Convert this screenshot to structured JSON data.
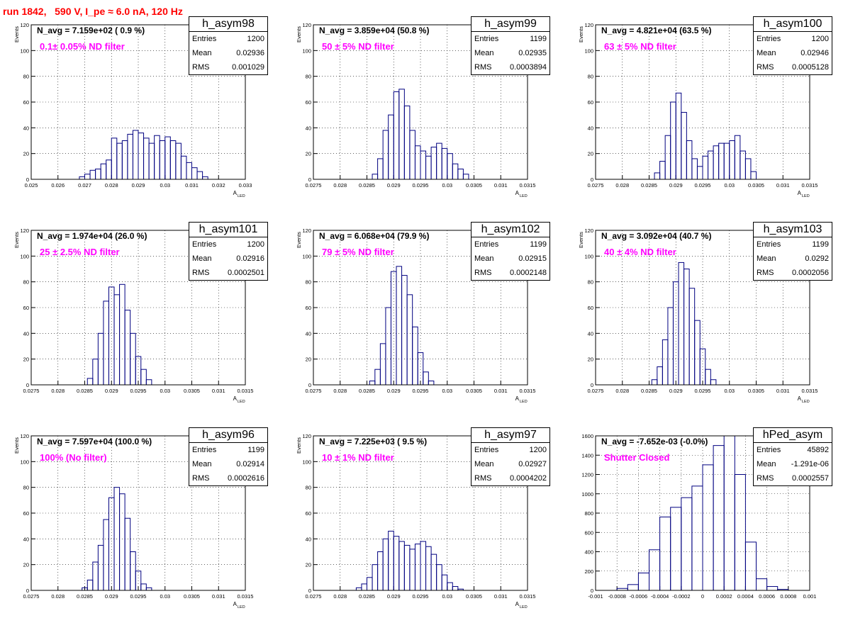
{
  "run_title": "run 1842,   590 V, I_pe ≈ 6.0 nA, 120 Hz",
  "colors": {
    "run_title": "#ff0000",
    "label": "#ff00ff",
    "hist": "#000080",
    "grid": "#000000"
  },
  "chart_data": [
    {
      "type": "histogram",
      "name": "h_asym98",
      "title": "N_avg = 7.159e+02 ( 0.9 %)",
      "label": "0.1± 0.05% ND filter",
      "ylabel": "Events",
      "xlabel": "A",
      "xlabel_sub": "LED",
      "xlim": [
        0.025,
        0.033
      ],
      "ylim": [
        0,
        120
      ],
      "xticks": [
        0.025,
        0.026,
        0.027,
        0.028,
        0.029,
        0.03,
        0.031,
        0.032,
        0.033
      ],
      "xticklabels": [
        "0.025",
        "0.026",
        "0.027",
        "0.028",
        "0.029",
        "0.03",
        "0.031",
        "0.032",
        "0.033"
      ],
      "yticks": [
        0,
        20,
        40,
        60,
        80,
        100,
        120
      ],
      "yticklabels": [
        "0",
        "20",
        "40",
        "60",
        "80",
        "100",
        "120"
      ],
      "bins": [
        0.0268,
        0.027,
        0.0272,
        0.0274,
        0.0276,
        0.0278,
        0.028,
        0.0282,
        0.0284,
        0.0286,
        0.0288,
        0.029,
        0.0292,
        0.0294,
        0.0296,
        0.0298,
        0.03,
        0.0302,
        0.0304,
        0.0306,
        0.0308,
        0.031,
        0.0312,
        0.0314,
        0.0316
      ],
      "counts": [
        2,
        4,
        7,
        8,
        12,
        15,
        32,
        28,
        30,
        35,
        38,
        36,
        32,
        28,
        34,
        30,
        33,
        30,
        28,
        18,
        13,
        9,
        6,
        2
      ],
      "stats": {
        "entries": "1200",
        "mean": "0.02936",
        "rms": "0.001029"
      }
    },
    {
      "type": "histogram",
      "name": "h_asym99",
      "title": "N_avg = 3.859e+04 (50.8 %)",
      "label": "50 ± 5% ND filter",
      "ylabel": "Events",
      "xlabel": "A",
      "xlabel_sub": "LED",
      "xlim": [
        0.0275,
        0.0315
      ],
      "ylim": [
        0,
        120
      ],
      "xticks": [
        0.0275,
        0.028,
        0.0285,
        0.029,
        0.0295,
        0.03,
        0.0305,
        0.031,
        0.0315
      ],
      "xticklabels": [
        "0.0275",
        "0.028",
        "0.0285",
        "0.029",
        "0.0295",
        "0.03",
        "0.0305",
        "0.031",
        "0.0315"
      ],
      "yticks": [
        0,
        20,
        40,
        60,
        80,
        100,
        120
      ],
      "yticklabels": [
        "0",
        "20",
        "40",
        "60",
        "80",
        "100",
        "120"
      ],
      "bins": [
        0.0286,
        0.0287,
        0.0288,
        0.0289,
        0.029,
        0.0291,
        0.0292,
        0.0293,
        0.0294,
        0.0295,
        0.0296,
        0.0297,
        0.0298,
        0.0299,
        0.03,
        0.0301,
        0.0302,
        0.0303,
        0.0304
      ],
      "counts": [
        4,
        16,
        38,
        50,
        68,
        70,
        57,
        38,
        26,
        22,
        18,
        25,
        28,
        24,
        20,
        12,
        8,
        4
      ],
      "stats": {
        "entries": "1199",
        "mean": "0.02935",
        "rms": "0.0003894"
      }
    },
    {
      "type": "histogram",
      "name": "h_asym100",
      "title": "N_avg = 4.821e+04 (63.5 %)",
      "label": "63 ± 5% ND filter",
      "ylabel": "Events",
      "xlabel": "A",
      "xlabel_sub": "LED",
      "xlim": [
        0.0275,
        0.0315
      ],
      "ylim": [
        0,
        120
      ],
      "xticks": [
        0.0275,
        0.028,
        0.0285,
        0.029,
        0.0295,
        0.03,
        0.0305,
        0.031,
        0.0315
      ],
      "xticklabels": [
        "0.0275",
        "0.028",
        "0.0285",
        "0.029",
        "0.0295",
        "0.03",
        "0.0305",
        "0.031",
        "0.0315"
      ],
      "yticks": [
        0,
        20,
        40,
        60,
        80,
        100,
        120
      ],
      "yticklabels": [
        "0",
        "20",
        "40",
        "60",
        "80",
        "100",
        "120"
      ],
      "bins": [
        0.0286,
        0.0287,
        0.0288,
        0.0289,
        0.029,
        0.0291,
        0.0292,
        0.0293,
        0.0294,
        0.0295,
        0.0296,
        0.0297,
        0.0298,
        0.0299,
        0.03,
        0.0301,
        0.0302,
        0.0303,
        0.0304,
        0.0305
      ],
      "counts": [
        5,
        14,
        34,
        60,
        67,
        52,
        30,
        16,
        10,
        18,
        22,
        26,
        28,
        28,
        30,
        34,
        22,
        16,
        6
      ],
      "stats": {
        "entries": "1200",
        "mean": "0.02946",
        "rms": "0.0005128"
      }
    },
    {
      "type": "histogram",
      "name": "h_asym101",
      "title": "N_avg = 1.974e+04 (26.0 %)",
      "label": "25 ± 2.5% ND filter",
      "ylabel": "Events",
      "xlabel": "A",
      "xlabel_sub": "LED",
      "xlim": [
        0.0275,
        0.0315
      ],
      "ylim": [
        0,
        120
      ],
      "xticks": [
        0.0275,
        0.028,
        0.0285,
        0.029,
        0.0295,
        0.03,
        0.0305,
        0.031,
        0.0315
      ],
      "xticklabels": [
        "0.0275",
        "0.028",
        "0.0285",
        "0.029",
        "0.0295",
        "0.03",
        "0.0305",
        "0.031",
        "0.0315"
      ],
      "yticks": [
        0,
        20,
        40,
        60,
        80,
        100,
        120
      ],
      "yticklabels": [
        "0",
        "20",
        "40",
        "60",
        "80",
        "100",
        "120"
      ],
      "bins": [
        0.02855,
        0.02865,
        0.02875,
        0.02885,
        0.02895,
        0.02905,
        0.02915,
        0.02925,
        0.02935,
        0.02945,
        0.02955,
        0.02965,
        0.02975
      ],
      "counts": [
        5,
        20,
        40,
        65,
        76,
        70,
        78,
        58,
        40,
        22,
        12,
        4
      ],
      "stats": {
        "entries": "1200",
        "mean": "0.02916",
        "rms": "0.0002501"
      }
    },
    {
      "type": "histogram",
      "name": "h_asym102",
      "title": "N_avg = 6.068e+04 (79.9 %)",
      "label": "79 ± 5% ND filter",
      "ylabel": "Events",
      "xlabel": "A",
      "xlabel_sub": "LED",
      "xlim": [
        0.0275,
        0.0315
      ],
      "ylim": [
        0,
        120
      ],
      "xticks": [
        0.0275,
        0.028,
        0.0285,
        0.029,
        0.0295,
        0.03,
        0.0305,
        0.031,
        0.0315
      ],
      "xticklabels": [
        "0.0275",
        "0.028",
        "0.0285",
        "0.029",
        "0.0295",
        "0.03",
        "0.0305",
        "0.031",
        "0.0315"
      ],
      "yticks": [
        0,
        20,
        40,
        60,
        80,
        100,
        120
      ],
      "yticklabels": [
        "0",
        "20",
        "40",
        "60",
        "80",
        "100",
        "120"
      ],
      "bins": [
        0.02855,
        0.02865,
        0.02875,
        0.02885,
        0.02895,
        0.02905,
        0.02915,
        0.02925,
        0.02935,
        0.02945,
        0.02955,
        0.02965,
        0.02975
      ],
      "counts": [
        3,
        12,
        32,
        60,
        88,
        92,
        85,
        70,
        45,
        25,
        10,
        3
      ],
      "stats": {
        "entries": "1199",
        "mean": "0.02915",
        "rms": "0.0002148"
      }
    },
    {
      "type": "histogram",
      "name": "h_asym103",
      "title": "N_avg = 3.092e+04 (40.7 %)",
      "label": "40 ± 4% ND filter",
      "ylabel": "Events",
      "xlabel": "A",
      "xlabel_sub": "LED",
      "xlim": [
        0.0275,
        0.0315
      ],
      "ylim": [
        0,
        120
      ],
      "xticks": [
        0.0275,
        0.028,
        0.0285,
        0.029,
        0.0295,
        0.03,
        0.0305,
        0.031,
        0.0315
      ],
      "xticklabels": [
        "0.0275",
        "0.028",
        "0.0285",
        "0.029",
        "0.0295",
        "0.03",
        "0.0305",
        "0.031",
        "0.0315"
      ],
      "yticks": [
        0,
        20,
        40,
        60,
        80,
        100,
        120
      ],
      "yticklabels": [
        "0",
        "20",
        "40",
        "60",
        "80",
        "100",
        "120"
      ],
      "bins": [
        0.02855,
        0.02865,
        0.02875,
        0.02885,
        0.02895,
        0.02905,
        0.02915,
        0.02925,
        0.02935,
        0.02945,
        0.02955,
        0.02965,
        0.02975
      ],
      "counts": [
        4,
        14,
        35,
        60,
        80,
        95,
        90,
        75,
        50,
        28,
        12,
        4
      ],
      "stats": {
        "entries": "1199",
        "mean": "0.0292",
        "rms": "0.0002056"
      }
    },
    {
      "type": "histogram",
      "name": "h_asym96",
      "title": "N_avg = 7.597e+04 (100.0 %)",
      "label": "100% (No filter)",
      "ylabel": "Events",
      "xlabel": "A",
      "xlabel_sub": "LED",
      "xlim": [
        0.0275,
        0.0315
      ],
      "ylim": [
        0,
        120
      ],
      "xticks": [
        0.0275,
        0.028,
        0.0285,
        0.029,
        0.0295,
        0.03,
        0.0305,
        0.031,
        0.0315
      ],
      "xticklabels": [
        "0.0275",
        "0.028",
        "0.0285",
        "0.029",
        "0.0295",
        "0.03",
        "0.0305",
        "0.031",
        "0.0315"
      ],
      "yticks": [
        0,
        20,
        40,
        60,
        80,
        100,
        120
      ],
      "yticklabels": [
        "0",
        "20",
        "40",
        "60",
        "80",
        "100",
        "120"
      ],
      "bins": [
        0.02845,
        0.02855,
        0.02865,
        0.02875,
        0.02885,
        0.02895,
        0.02905,
        0.02915,
        0.02925,
        0.02935,
        0.02945,
        0.02955,
        0.02965,
        0.02975
      ],
      "counts": [
        2,
        8,
        22,
        35,
        55,
        72,
        80,
        75,
        56,
        30,
        15,
        5,
        2
      ],
      "stats": {
        "entries": "1199",
        "mean": "0.02914",
        "rms": "0.0002616"
      }
    },
    {
      "type": "histogram",
      "name": "h_asym97",
      "title": "N_avg = 7.225e+03 ( 9.5 %)",
      "label": "10 ± 1% ND filter",
      "ylabel": "Events",
      "xlabel": "A",
      "xlabel_sub": "LED",
      "xlim": [
        0.0275,
        0.0315
      ],
      "ylim": [
        0,
        120
      ],
      "xticks": [
        0.0275,
        0.028,
        0.0285,
        0.029,
        0.0295,
        0.03,
        0.0305,
        0.031,
        0.0315
      ],
      "xticklabels": [
        "0.0275",
        "0.028",
        "0.0285",
        "0.029",
        "0.0295",
        "0.03",
        "0.0305",
        "0.031",
        "0.0315"
      ],
      "yticks": [
        0,
        20,
        40,
        60,
        80,
        100,
        120
      ],
      "yticklabels": [
        "0",
        "20",
        "40",
        "60",
        "80",
        "100",
        "120"
      ],
      "bins": [
        0.0283,
        0.0284,
        0.0285,
        0.0286,
        0.0287,
        0.0288,
        0.0289,
        0.029,
        0.0291,
        0.0292,
        0.0293,
        0.0294,
        0.0295,
        0.0296,
        0.0297,
        0.0298,
        0.0299,
        0.03,
        0.0301,
        0.0302,
        0.0303
      ],
      "counts": [
        2,
        5,
        10,
        20,
        30,
        40,
        46,
        42,
        38,
        35,
        32,
        36,
        38,
        34,
        28,
        20,
        12,
        6,
        3,
        1
      ],
      "stats": {
        "entries": "1200",
        "mean": "0.02927",
        "rms": "0.0004202"
      }
    },
    {
      "type": "histogram",
      "name": "hPed_asym",
      "title": "N_avg = -7.652e-03 (-0.0%)",
      "label": "Shutter Closed",
      "ylabel": "",
      "xlabel": "",
      "xlabel_sub": "",
      "xlim": [
        -0.001,
        0.001
      ],
      "ylim": [
        0,
        1600
      ],
      "xticks": [
        -0.001,
        -0.0008,
        -0.0006,
        -0.0004,
        -0.0002,
        0,
        0.0002,
        0.0004,
        0.0006,
        0.0008,
        0.001
      ],
      "xticklabels": [
        "-0.001",
        "-0.0008",
        "-0.0006",
        "-0.0004",
        "-0.0002",
        "0",
        "0.0002",
        "0.0004",
        "0.0006",
        "0.0008",
        "0.001"
      ],
      "yticks": [
        0,
        200,
        400,
        600,
        800,
        1000,
        1200,
        1400,
        1600
      ],
      "yticklabels": [
        "0",
        "200",
        "400",
        "600",
        "800",
        "1000",
        "1200",
        "1400",
        "1600"
      ],
      "bins": [
        -0.0008,
        -0.0007,
        -0.0006,
        -0.0005,
        -0.0004,
        -0.0003,
        -0.0002,
        -0.0001,
        0,
        0.0001,
        0.0002,
        0.0003,
        0.0004,
        0.0005,
        0.0006,
        0.0007,
        0.0008
      ],
      "counts": [
        20,
        60,
        180,
        420,
        760,
        860,
        960,
        1080,
        1300,
        1500,
        1600,
        1200,
        500,
        120,
        40,
        10
      ],
      "stats": {
        "entries": "45892",
        "mean": "-1.291e-06",
        "rms": "0.0002557"
      }
    }
  ],
  "stats_labels": {
    "entries": "Entries",
    "mean": "Mean",
    "rms": "RMS"
  }
}
